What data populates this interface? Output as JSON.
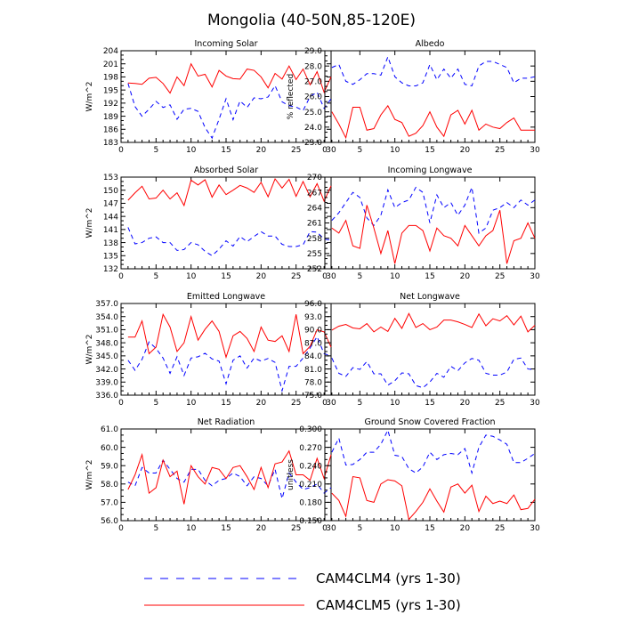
{
  "figure": {
    "title": "Mongolia (40-50N,85-120E)",
    "legend": [
      {
        "label": "CAM4CLM4 (yrs 1-30)",
        "color": "#0000ff",
        "dash": "dashed"
      },
      {
        "label": "CAM4CLM5 (yrs 1-30)",
        "color": "#ff0000",
        "dash": "solid"
      }
    ]
  },
  "chart_data": [
    {
      "type": "line",
      "title": "Incoming Solar",
      "xlabel": "",
      "ylabel": "W/m^2",
      "xlim": [
        0,
        30
      ],
      "ylim": [
        183,
        204
      ],
      "yticks": [
        "183",
        "186",
        "189",
        "192",
        "195",
        "198",
        "201",
        "204"
      ],
      "xticks": [
        "0",
        "5",
        "10",
        "15",
        "20",
        "25",
        "30"
      ],
      "x": [
        1,
        2,
        3,
        4,
        5,
        6,
        7,
        8,
        9,
        10,
        11,
        12,
        13,
        14,
        15,
        16,
        17,
        18,
        19,
        20,
        21,
        22,
        23,
        24,
        25,
        26,
        27,
        28,
        29,
        30
      ],
      "series": [
        {
          "name": "CAM4CLM4 (yrs 1-30)",
          "values": [
            196.5,
            191.2,
            189.0,
            190.6,
            192.4,
            191.0,
            191.6,
            188.3,
            190.6,
            190.8,
            190.1,
            186.4,
            184.0,
            188.3,
            193.0,
            188.2,
            192.5,
            191.0,
            193.2,
            193.0,
            193.4,
            196.0,
            192.3,
            191.4,
            191.1,
            190.3,
            193.5,
            194.5,
            190.8,
            193.0
          ]
        },
        {
          "name": "CAM4CLM5 (yrs 1-30)",
          "values": [
            196.6,
            196.5,
            196.3,
            197.7,
            197.9,
            196.5,
            194.3,
            198.0,
            196.0,
            201.0,
            198.2,
            198.6,
            195.7,
            199.5,
            198.2,
            197.6,
            197.5,
            199.8,
            199.5,
            198.0,
            195.5,
            198.8,
            197.5,
            200.5,
            197.4,
            199.8,
            196.2,
            199.2,
            194.5,
            198.0
          ]
        }
      ]
    },
    {
      "type": "line",
      "title": "Albedo",
      "xlabel": "",
      "ylabel": "% reflected",
      "xlim": [
        0,
        30
      ],
      "ylim": [
        23.0,
        29.0
      ],
      "yticks": [
        "23.0",
        "24.0",
        "25.0",
        "26.0",
        "27.0",
        "28.0",
        "29.0"
      ],
      "xticks": [
        "0",
        "5",
        "10",
        "15",
        "20",
        "25",
        "30"
      ],
      "x": [
        1,
        2,
        3,
        4,
        5,
        6,
        7,
        8,
        9,
        10,
        11,
        12,
        13,
        14,
        15,
        16,
        17,
        18,
        19,
        20,
        21,
        22,
        23,
        24,
        25,
        26,
        27,
        28,
        29,
        30
      ],
      "series": [
        {
          "name": "CAM4CLM4 (yrs 1-30)",
          "values": [
            27.9,
            28.1,
            27.0,
            26.8,
            27.1,
            27.5,
            27.5,
            27.4,
            28.6,
            27.3,
            26.9,
            26.7,
            26.7,
            26.9,
            28.1,
            27.1,
            27.8,
            27.2,
            27.8,
            26.8,
            26.7,
            28.0,
            28.3,
            28.3,
            28.1,
            27.9,
            26.9,
            27.2,
            27.2,
            27.3
          ]
        },
        {
          "name": "CAM4CLM5 (yrs 1-30)",
          "values": [
            25.0,
            24.2,
            23.3,
            25.3,
            25.3,
            23.8,
            23.9,
            24.8,
            25.4,
            24.5,
            24.3,
            23.4,
            23.6,
            24.1,
            25.0,
            24.0,
            23.4,
            24.8,
            25.1,
            24.2,
            25.1,
            23.8,
            24.2,
            24.0,
            23.9,
            24.3,
            24.6,
            23.8,
            23.8,
            23.8
          ]
        }
      ]
    },
    {
      "type": "line",
      "title": "Absorbed Solar",
      "xlabel": "",
      "ylabel": "W/m^2",
      "xlim": [
        0,
        30
      ],
      "ylim": [
        132,
        153
      ],
      "yticks": [
        "132",
        "135",
        "138",
        "141",
        "144",
        "147",
        "150",
        "153"
      ],
      "xticks": [
        "0",
        "5",
        "10",
        "15",
        "20",
        "25",
        "30"
      ],
      "x": [
        1,
        2,
        3,
        4,
        5,
        6,
        7,
        8,
        9,
        10,
        11,
        12,
        13,
        14,
        15,
        16,
        17,
        18,
        19,
        20,
        21,
        22,
        23,
        24,
        25,
        26,
        27,
        28,
        29,
        30
      ],
      "series": [
        {
          "name": "CAM4CLM4 (yrs 1-30)",
          "values": [
            141.5,
            137.7,
            138.0,
            139.0,
            139.3,
            138.0,
            138.0,
            136.2,
            136.4,
            138.0,
            137.5,
            136.0,
            135.0,
            136.5,
            138.4,
            137.2,
            139.4,
            138.2,
            139.4,
            140.5,
            139.5,
            139.5,
            137.6,
            137.1,
            137.1,
            137.5,
            140.5,
            140.4,
            138.8,
            138.6
          ]
        },
        {
          "name": "CAM4CLM5 (yrs 1-30)",
          "values": [
            147.7,
            149.4,
            150.9,
            148.0,
            148.2,
            150.0,
            148.0,
            149.4,
            146.5,
            152.3,
            151.2,
            152.4,
            148.4,
            151.2,
            149.0,
            150.0,
            151.1,
            150.5,
            149.5,
            151.8,
            148.5,
            152.6,
            150.5,
            152.5,
            148.6,
            152.0,
            148.5,
            151.5,
            147.5,
            151.0
          ]
        }
      ]
    },
    {
      "type": "line",
      "title": "Incoming Longwave",
      "xlabel": "",
      "ylabel": "",
      "xlim": [
        0,
        30
      ],
      "ylim": [
        252,
        270
      ],
      "yticks": [
        "252",
        "255",
        "258",
        "261",
        "264",
        "267",
        "270"
      ],
      "xticks": [
        "0",
        "5",
        "10",
        "15",
        "20",
        "25",
        "30"
      ],
      "x": [
        1,
        2,
        3,
        4,
        5,
        6,
        7,
        8,
        9,
        10,
        11,
        12,
        13,
        14,
        15,
        16,
        17,
        18,
        19,
        20,
        21,
        22,
        23,
        24,
        25,
        26,
        27,
        28,
        29,
        30
      ],
      "series": [
        {
          "name": "CAM4CLM4 (yrs 1-30)",
          "values": [
            261.5,
            263.0,
            265.0,
            267.0,
            266.0,
            262.0,
            260.5,
            262.5,
            267.5,
            264.0,
            265.0,
            265.5,
            268.0,
            267.0,
            261.0,
            266.5,
            264.0,
            265.0,
            262.5,
            264.5,
            268.0,
            259.0,
            260.0,
            263.5,
            264.0,
            265.0,
            264.0,
            265.5,
            264.5,
            265.5
          ]
        },
        {
          "name": "CAM4CLM5 (yrs 1-30)",
          "values": [
            260.0,
            259.0,
            261.5,
            256.5,
            256.0,
            264.5,
            260.0,
            255.0,
            259.5,
            253.0,
            259.0,
            260.5,
            260.5,
            259.5,
            255.5,
            260.0,
            258.5,
            258.0,
            256.5,
            260.5,
            258.5,
            256.5,
            258.5,
            259.5,
            263.5,
            253.0,
            257.5,
            258.0,
            261.0,
            258.0
          ]
        }
      ]
    },
    {
      "type": "line",
      "title": "Emitted Longwave",
      "xlabel": "",
      "ylabel": "W/m^2",
      "xlim": [
        0,
        30
      ],
      "ylim": [
        336.0,
        357.0
      ],
      "yticks": [
        "336.0",
        "339.0",
        "342.0",
        "345.0",
        "348.0",
        "351.0",
        "354.0",
        "357.0"
      ],
      "xticks": [
        "0",
        "5",
        "10",
        "15",
        "20",
        "25",
        "30"
      ],
      "x": [
        1,
        2,
        3,
        4,
        5,
        6,
        7,
        8,
        9,
        10,
        11,
        12,
        13,
        14,
        15,
        16,
        17,
        18,
        19,
        20,
        21,
        22,
        23,
        24,
        25,
        26,
        27,
        28,
        29,
        30
      ],
      "series": [
        {
          "name": "CAM4CLM4 (yrs 1-30)",
          "values": [
            344.0,
            341.7,
            344.2,
            348.2,
            346.7,
            344.5,
            341.0,
            344.8,
            340.5,
            344.5,
            344.8,
            345.6,
            344.3,
            343.8,
            338.6,
            344.0,
            345.0,
            342.2,
            344.5,
            343.8,
            344.4,
            343.5,
            337.0,
            342.6,
            342.6,
            344.5,
            346.8,
            349.4,
            345.5,
            345.0
          ]
        },
        {
          "name": "CAM4CLM5 (yrs 1-30)",
          "values": [
            349.3,
            349.3,
            353.0,
            345.5,
            347.0,
            354.5,
            351.6,
            346.0,
            348.0,
            354.0,
            348.6,
            351.1,
            353.0,
            350.6,
            344.7,
            349.6,
            350.6,
            349.0,
            346.0,
            351.6,
            348.6,
            348.3,
            349.6,
            346.0,
            354.5,
            345.5,
            347.2,
            351.0,
            350.5,
            347.0
          ]
        }
      ]
    },
    {
      "type": "line",
      "title": "Net Longwave",
      "xlabel": "",
      "ylabel": "",
      "xlim": [
        0,
        30
      ],
      "ylim": [
        75.0,
        96.0
      ],
      "yticks": [
        "75.0",
        "78.0",
        "81.0",
        "84.0",
        "87.0",
        "90.0",
        "93.0",
        "96.0"
      ],
      "xticks": [
        "0",
        "5",
        "10",
        "15",
        "20",
        "25",
        "30"
      ],
      "x": [
        1,
        2,
        3,
        4,
        5,
        6,
        7,
        8,
        9,
        10,
        11,
        12,
        13,
        14,
        15,
        16,
        17,
        18,
        19,
        20,
        21,
        22,
        23,
        24,
        25,
        26,
        27,
        28,
        29,
        30
      ],
      "series": [
        {
          "name": "CAM4CLM4 (yrs 1-30)",
          "values": [
            83.5,
            80.0,
            79.3,
            81.3,
            80.9,
            82.7,
            79.9,
            79.9,
            77.3,
            78.3,
            80.1,
            79.9,
            77.2,
            76.7,
            78.0,
            80.0,
            79.1,
            81.6,
            80.6,
            82.4,
            83.4,
            83.0,
            80.0,
            79.6,
            79.6,
            80.3,
            83.2,
            83.5,
            81.0,
            80.8
          ]
        },
        {
          "name": "CAM4CLM5 (yrs 1-30)",
          "values": [
            89.9,
            90.8,
            91.2,
            90.4,
            90.2,
            91.4,
            89.5,
            90.6,
            89.6,
            92.6,
            90.3,
            93.7,
            90.5,
            91.4,
            90.0,
            90.6,
            92.2,
            92.2,
            91.8,
            91.2,
            90.5,
            93.6,
            90.9,
            92.5,
            92.0,
            93.2,
            91.1,
            93.1,
            89.5,
            91.0
          ]
        }
      ]
    },
    {
      "type": "line",
      "title": "Net Radiation",
      "xlabel": "",
      "ylabel": "W/m^2",
      "xlim": [
        0,
        30
      ],
      "ylim": [
        56.0,
        61.0
      ],
      "yticks": [
        "56.0",
        "57.0",
        "58.0",
        "59.0",
        "60.0",
        "61.0"
      ],
      "xticks": [
        "0",
        "5",
        "10",
        "15",
        "20",
        "25",
        "30"
      ],
      "x": [
        1,
        2,
        3,
        4,
        5,
        6,
        7,
        8,
        9,
        10,
        11,
        12,
        13,
        14,
        15,
        16,
        17,
        18,
        19,
        20,
        21,
        22,
        23,
        24,
        25,
        26,
        27,
        28,
        29,
        30
      ],
      "series": [
        {
          "name": "CAM4CLM4 (yrs 1-30)",
          "values": [
            58.1,
            57.9,
            58.9,
            58.6,
            58.6,
            59.3,
            58.8,
            58.3,
            58.1,
            58.8,
            58.8,
            58.2,
            57.9,
            58.2,
            58.3,
            58.6,
            58.4,
            57.9,
            58.4,
            58.3,
            57.9,
            58.8,
            57.2,
            58.6,
            58.1,
            57.7,
            57.8,
            58.0,
            57.5,
            57.8
          ]
        },
        {
          "name": "CAM4CLM5 (yrs 1-30)",
          "values": [
            57.7,
            58.5,
            59.6,
            57.5,
            57.8,
            59.3,
            58.4,
            58.7,
            56.9,
            59.0,
            58.4,
            58.0,
            58.9,
            58.8,
            58.3,
            58.9,
            59.0,
            58.4,
            57.7,
            58.9,
            57.8,
            59.1,
            59.2,
            59.8,
            58.5,
            58.5,
            58.2,
            59.4,
            58.3,
            59.6
          ]
        }
      ]
    },
    {
      "type": "line",
      "title": "Ground Snow Covered Fraction",
      "xlabel": "",
      "ylabel": "unitless",
      "xlim": [
        0,
        30
      ],
      "ylim": [
        0.15,
        0.3
      ],
      "yticks": [
        "0.150",
        "0.180",
        "0.210",
        "0.240",
        "0.270",
        "0.300"
      ],
      "xticks": [
        "0",
        "5",
        "10",
        "15",
        "20",
        "25",
        "30"
      ],
      "x": [
        1,
        2,
        3,
        4,
        5,
        6,
        7,
        8,
        9,
        10,
        11,
        12,
        13,
        14,
        15,
        16,
        17,
        18,
        19,
        20,
        21,
        22,
        23,
        24,
        25,
        26,
        27,
        28,
        29,
        30
      ],
      "series": [
        {
          "name": "CAM4CLM4 (yrs 1-30)",
          "values": [
            0.262,
            0.285,
            0.241,
            0.242,
            0.25,
            0.262,
            0.262,
            0.275,
            0.298,
            0.257,
            0.255,
            0.235,
            0.228,
            0.238,
            0.262,
            0.25,
            0.258,
            0.26,
            0.258,
            0.268,
            0.228,
            0.27,
            0.29,
            0.288,
            0.282,
            0.275,
            0.245,
            0.245,
            0.252,
            0.26
          ]
        },
        {
          "name": "CAM4CLM5 (yrs 1-30)",
          "values": [
            0.195,
            0.183,
            0.157,
            0.222,
            0.22,
            0.183,
            0.18,
            0.21,
            0.217,
            0.215,
            0.207,
            0.152,
            0.165,
            0.18,
            0.202,
            0.182,
            0.164,
            0.205,
            0.21,
            0.195,
            0.208,
            0.165,
            0.19,
            0.178,
            0.182,
            0.178,
            0.192,
            0.168,
            0.17,
            0.185
          ]
        }
      ]
    }
  ]
}
